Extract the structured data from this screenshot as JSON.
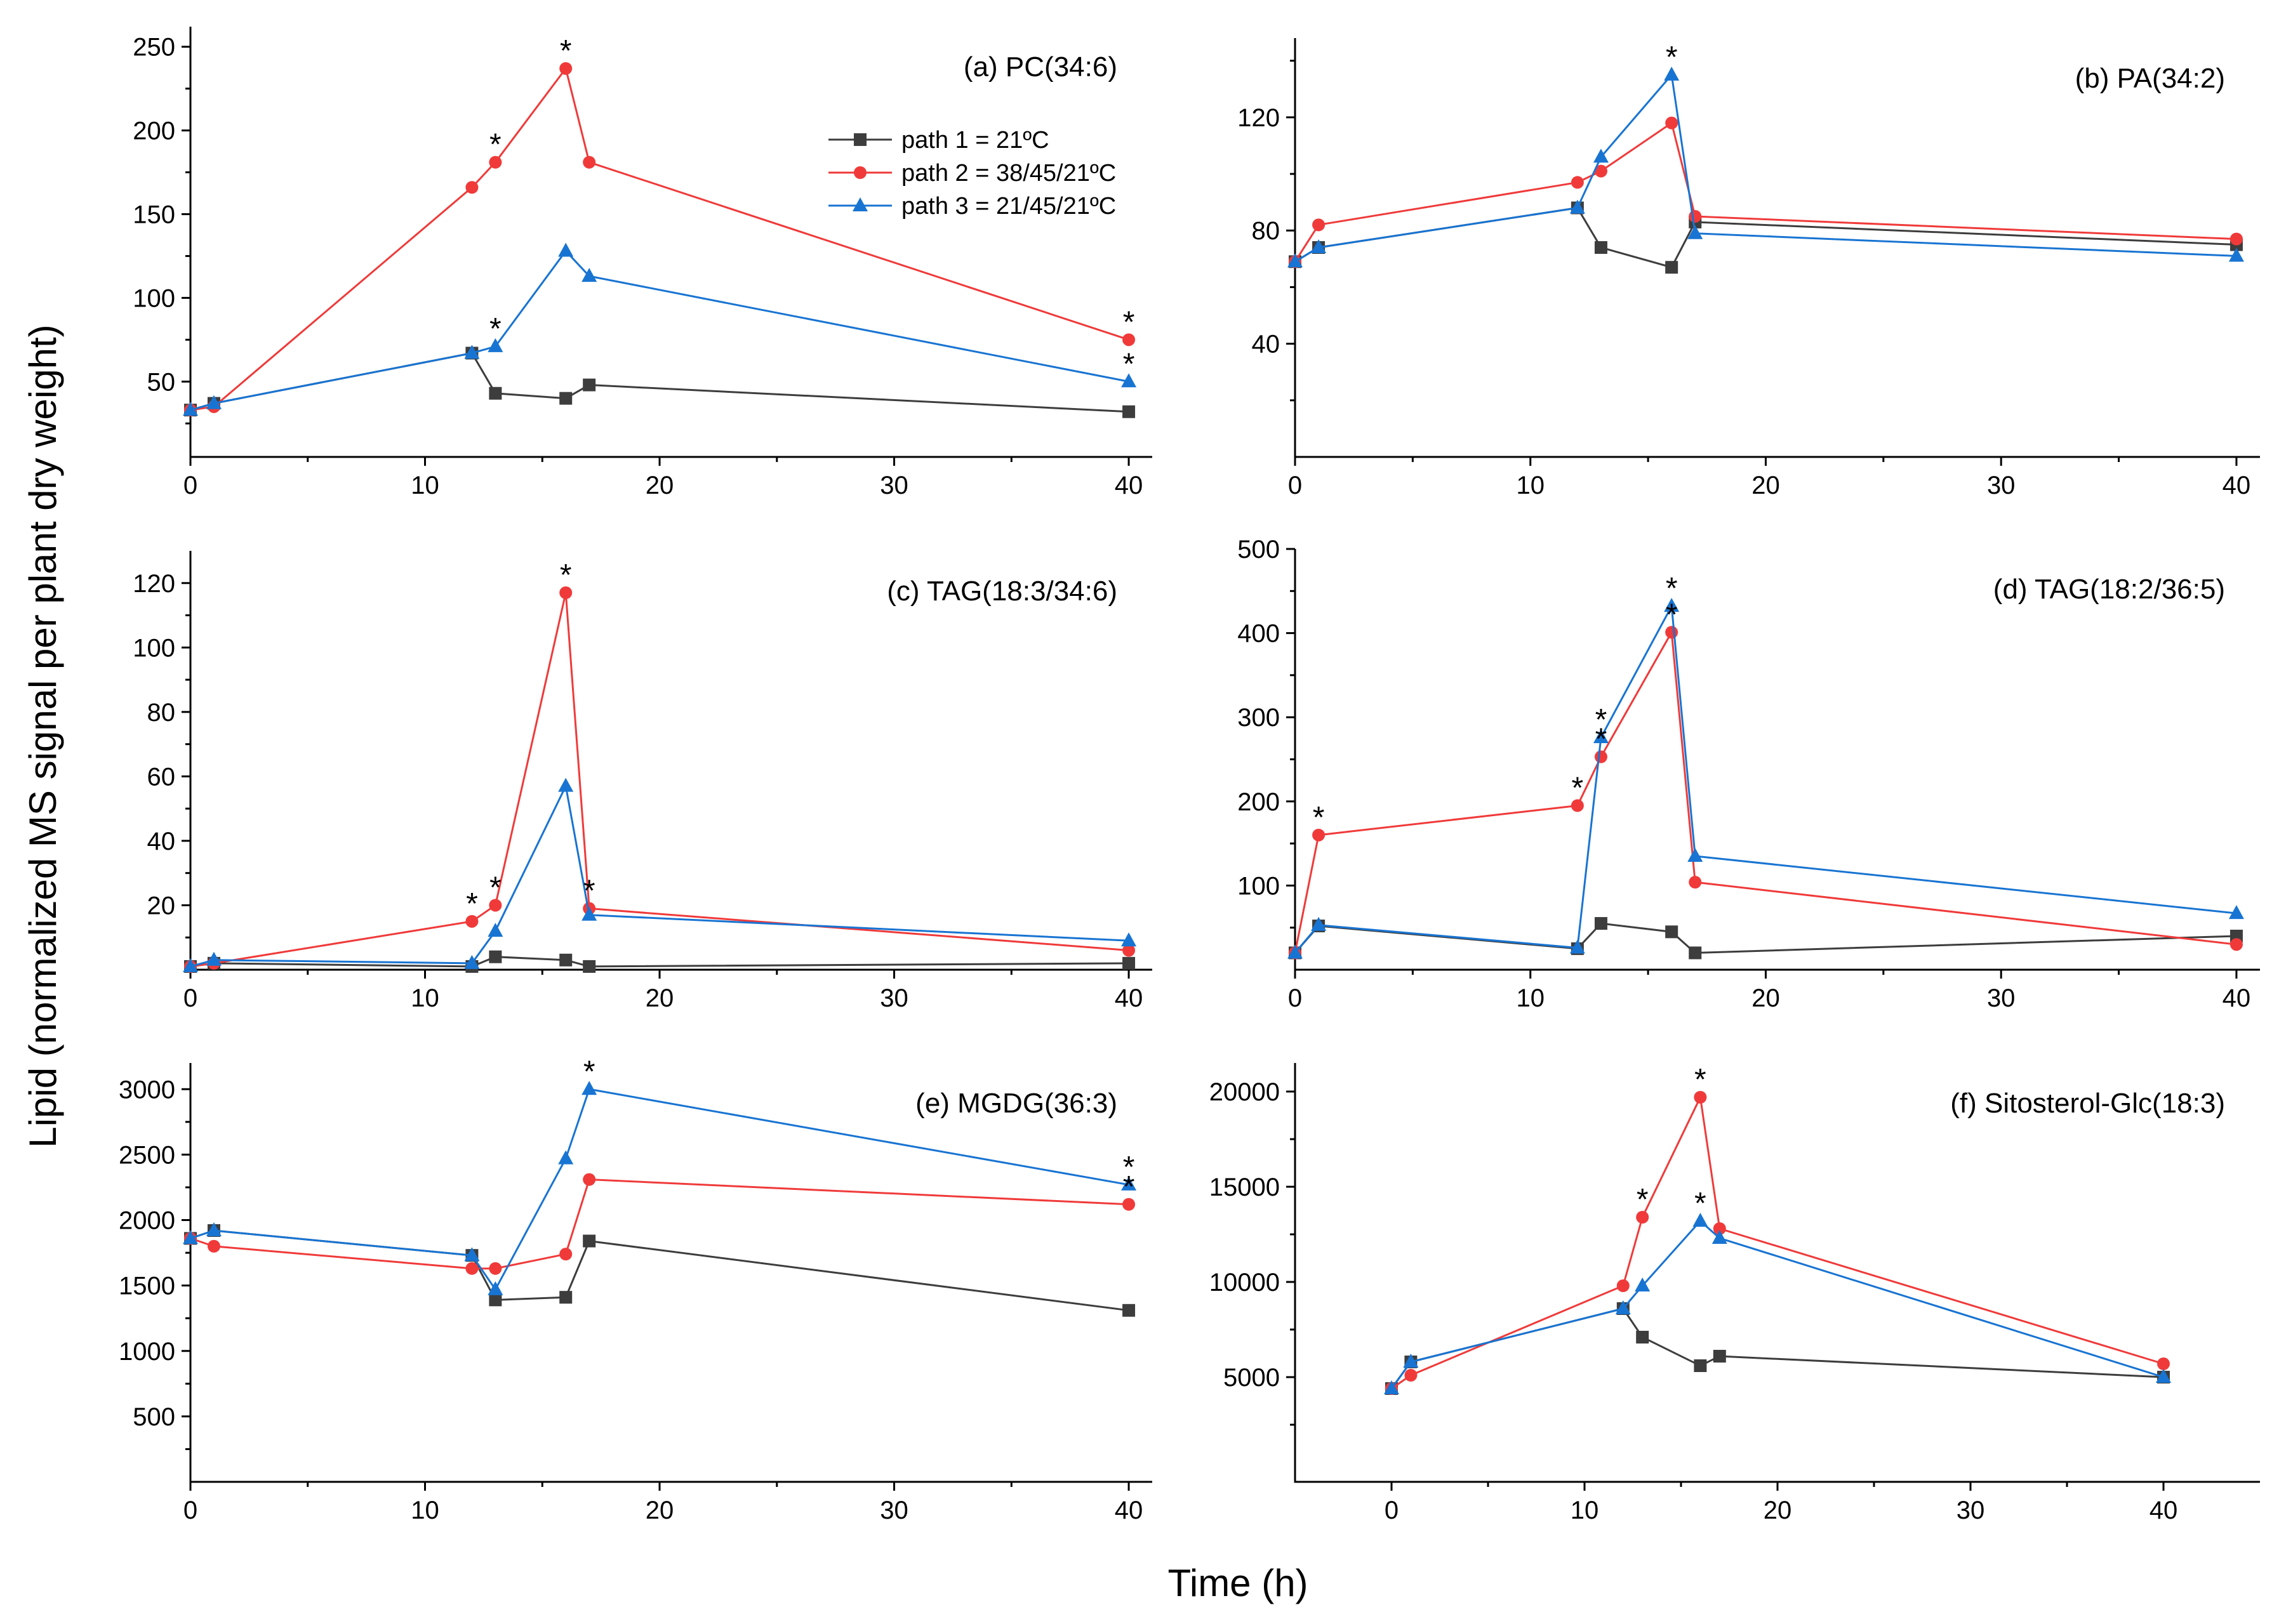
{
  "figure": {
    "ylabel": "Lipid (normalized MS signal per plant dry weight)",
    "xlabel": "Time (h)"
  },
  "legend": [
    {
      "name": "path 1 = 21ºC",
      "color": "#3d3d3d",
      "marker": "square"
    },
    {
      "name": "path 2 = 38/45/21ºC",
      "color": "#f03a3a",
      "marker": "circle"
    },
    {
      "name": "path 3 = 21/45/21ºC",
      "color": "#1874d2",
      "marker": "triangle"
    }
  ],
  "chart_data": [
    {
      "type": "line",
      "title": "(a) PC(34:6)",
      "xlim": [
        0,
        41
      ],
      "ylim": [
        5,
        262
      ],
      "xticks": [
        0,
        10,
        20,
        30,
        40
      ],
      "xminor": [
        5,
        15,
        25,
        35
      ],
      "yticks": [
        50,
        100,
        150,
        200,
        250
      ],
      "yminor": [
        25,
        75,
        125,
        175,
        225
      ],
      "series": [
        {
          "name": "path 1 = 21ºC",
          "x": [
            0,
            1,
            12,
            13,
            16,
            17,
            40
          ],
          "y": [
            33,
            37,
            67,
            43,
            40,
            48,
            32
          ]
        },
        {
          "name": "path 2 = 38/45/21ºC",
          "x": [
            0,
            1,
            12,
            13,
            16,
            17,
            40
          ],
          "y": [
            33,
            35,
            166,
            181,
            237,
            181,
            75
          ]
        },
        {
          "name": "path 3 = 21/45/21ºC",
          "x": [
            0,
            1,
            12,
            13,
            16,
            17,
            40
          ],
          "y": [
            33,
            37,
            67,
            71,
            128,
            113,
            50
          ]
        }
      ],
      "stars": [
        {
          "x": 13,
          "y": 181
        },
        {
          "x": 16,
          "y": 237
        },
        {
          "x": 13,
          "y": 71
        },
        {
          "x": 40,
          "y": 75
        },
        {
          "x": 40,
          "y": 50
        }
      ]
    },
    {
      "type": "line",
      "title": "(b) PA(34:2)",
      "xlim": [
        0,
        41
      ],
      "ylim": [
        0,
        148
      ],
      "xticks": [
        0,
        10,
        20,
        30,
        40
      ],
      "xminor": [
        5,
        15,
        25,
        35
      ],
      "yticks": [
        40,
        80,
        120
      ],
      "yminor": [
        20,
        60,
        100,
        140
      ],
      "series": [
        {
          "name": "path 1 = 21ºC",
          "x": [
            0,
            1,
            12,
            13,
            16,
            17,
            40
          ],
          "y": [
            69,
            74,
            88,
            74,
            67,
            83,
            75
          ]
        },
        {
          "name": "path 2 = 38/45/21ºC",
          "x": [
            0,
            1,
            12,
            13,
            16,
            17,
            40
          ],
          "y": [
            69,
            82,
            97,
            101,
            118,
            85,
            77
          ]
        },
        {
          "name": "path 3 = 21/45/21ºC",
          "x": [
            0,
            1,
            12,
            13,
            16,
            17,
            40
          ],
          "y": [
            69,
            74,
            88,
            106,
            135,
            79,
            71
          ]
        }
      ],
      "stars": [
        {
          "x": 16,
          "y": 135
        }
      ]
    },
    {
      "type": "line",
      "title": "(c) TAG(18:3/34:6)",
      "xlim": [
        0,
        41
      ],
      "ylim": [
        0,
        130
      ],
      "xticks": [
        0,
        10,
        20,
        30,
        40
      ],
      "xminor": [
        5,
        15,
        25,
        35
      ],
      "yticks": [
        20,
        40,
        60,
        80,
        100,
        120
      ],
      "yminor": [
        10,
        30,
        50,
        70,
        90,
        110
      ],
      "series": [
        {
          "name": "path 1 = 21ºC",
          "x": [
            0,
            1,
            12,
            13,
            16,
            17,
            40
          ],
          "y": [
            1,
            2,
            1,
            4,
            3,
            1,
            2
          ]
        },
        {
          "name": "path 2 = 38/45/21ºC",
          "x": [
            0,
            1,
            12,
            13,
            16,
            17,
            40
          ],
          "y": [
            1,
            2,
            15,
            20,
            117,
            19,
            6
          ]
        },
        {
          "name": "path 3 = 21/45/21ºC",
          "x": [
            0,
            1,
            12,
            13,
            16,
            17,
            40
          ],
          "y": [
            1,
            3,
            2,
            12,
            57,
            17,
            9
          ]
        }
      ],
      "stars": [
        {
          "x": 12,
          "y": 15
        },
        {
          "x": 13,
          "y": 20
        },
        {
          "x": 16,
          "y": 117
        },
        {
          "x": 17,
          "y": 19
        }
      ]
    },
    {
      "type": "line",
      "title": "(d) TAG(18:2/36:5)",
      "xlim": [
        0,
        41
      ],
      "ylim": [
        0,
        500
      ],
      "xticks": [
        0,
        10,
        20,
        30,
        40
      ],
      "xminor": [
        5,
        15,
        25,
        35
      ],
      "yticks": [
        100,
        200,
        300,
        400,
        500
      ],
      "yminor": [
        50,
        150,
        250,
        350,
        450
      ],
      "series": [
        {
          "name": "path 1 = 21ºC",
          "x": [
            0,
            1,
            12,
            13,
            16,
            17,
            40
          ],
          "y": [
            20,
            52,
            25,
            55,
            45,
            20,
            40
          ]
        },
        {
          "name": "path 2 = 38/45/21ºC",
          "x": [
            0,
            1,
            12,
            13,
            16,
            17,
            40
          ],
          "y": [
            20,
            160,
            195,
            253,
            401,
            104,
            30
          ]
        },
        {
          "name": "path 3 = 21/45/21ºC",
          "x": [
            0,
            1,
            12,
            13,
            16,
            17,
            40
          ],
          "y": [
            20,
            53,
            26,
            276,
            432,
            135,
            67
          ]
        }
      ],
      "stars": [
        {
          "x": 1,
          "y": 160
        },
        {
          "x": 12,
          "y": 195
        },
        {
          "x": 13,
          "y": 253
        },
        {
          "x": 13,
          "y": 276
        },
        {
          "x": 16,
          "y": 401
        },
        {
          "x": 16,
          "y": 432
        }
      ]
    },
    {
      "type": "line",
      "title": "(e) MGDG(36:3)",
      "xlim": [
        0,
        41
      ],
      "ylim": [
        0,
        3200
      ],
      "xticks": [
        0,
        10,
        20,
        30,
        40
      ],
      "xminor": [
        5,
        15,
        25,
        35
      ],
      "yticks": [
        500,
        1000,
        1500,
        2000,
        2500,
        3000
      ],
      "yminor": [
        250,
        750,
        1250,
        1750,
        2250,
        2750
      ],
      "series": [
        {
          "name": "path 1 = 21ºC",
          "x": [
            0,
            1,
            12,
            13,
            16,
            17,
            40
          ],
          "y": [
            1860,
            1920,
            1730,
            1390,
            1410,
            1840,
            1310
          ]
        },
        {
          "name": "path 2 = 38/45/21ºC",
          "x": [
            0,
            1,
            12,
            13,
            16,
            17,
            40
          ],
          "y": [
            1860,
            1800,
            1630,
            1630,
            1740,
            2310,
            2120
          ]
        },
        {
          "name": "path 3 = 21/45/21ºC",
          "x": [
            0,
            1,
            12,
            13,
            16,
            17,
            40
          ],
          "y": [
            1860,
            1920,
            1730,
            1470,
            2470,
            3000,
            2270
          ]
        }
      ],
      "stars": [
        {
          "x": 17,
          "y": 3000
        },
        {
          "x": 40,
          "y": 2270
        },
        {
          "x": 40,
          "y": 2120
        }
      ]
    },
    {
      "type": "line",
      "title": "(f) Sitosterol-Glc(18:3)",
      "xlim": [
        -5,
        45
      ],
      "ylim": [
        -500,
        21500
      ],
      "xticks": [
        0,
        10,
        20,
        30,
        40
      ],
      "xminor": [
        5,
        15,
        25,
        35
      ],
      "yticks": [
        5000,
        10000,
        15000,
        20000
      ],
      "yminor": [
        2500,
        7500,
        12500,
        17500
      ],
      "series": [
        {
          "name": "path 1 = 21ºC",
          "x": [
            0,
            1,
            12,
            13,
            16,
            17,
            40
          ],
          "y": [
            4400,
            5800,
            8600,
            7100,
            5600,
            6100,
            5000
          ]
        },
        {
          "name": "path 2 = 38/45/21ºC",
          "x": [
            0,
            1,
            12,
            13,
            16,
            17,
            40
          ],
          "y": [
            4400,
            5100,
            9800,
            13400,
            19700,
            12800,
            5700
          ]
        },
        {
          "name": "path 3 = 21/45/21ºC",
          "x": [
            0,
            1,
            12,
            13,
            16,
            17,
            40
          ],
          "y": [
            4400,
            5800,
            8600,
            9800,
            13200,
            12300,
            5000
          ]
        }
      ],
      "stars": [
        {
          "x": 13,
          "y": 13400
        },
        {
          "x": 16,
          "y": 19700
        },
        {
          "x": 16,
          "y": 13200
        }
      ]
    }
  ]
}
